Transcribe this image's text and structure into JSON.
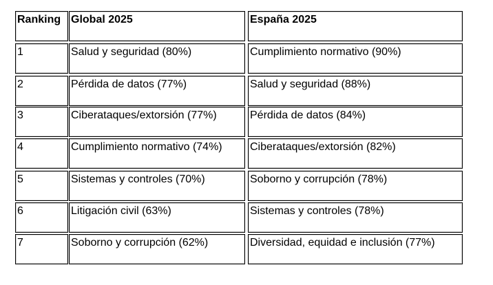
{
  "table": {
    "headers": [
      "Ranking",
      "Global 2025",
      "España 2025"
    ],
    "rows": [
      [
        "1",
        "Salud y seguridad (80%)",
        "Cumplimiento normativo (90%)"
      ],
      [
        "2",
        "Pérdida de datos (77%)",
        "Salud y seguridad (88%)"
      ],
      [
        "3",
        "Ciberataques/extorsión (77%)",
        "Pérdida de datos (84%)"
      ],
      [
        "4",
        "Cumplimiento normativo (74%)",
        "Ciberataques/extorsión (82%)"
      ],
      [
        "5",
        "Sistemas y controles (70%)",
        "Soborno y corrupción (78%)"
      ],
      [
        "6",
        "Litigación civil (63%)",
        "Sistemas y controles (78%)"
      ],
      [
        "7",
        "Soborno y corrupción (62%)",
        "Diversidad, equidad e inclusión (77%)"
      ]
    ]
  }
}
